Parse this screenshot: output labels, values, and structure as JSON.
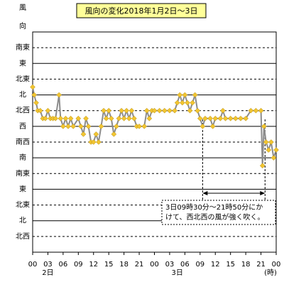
{
  "chart_data": {
    "type": "line",
    "title": "風向の変化2018年1月2日～3日",
    "y_label_chars": [
      "風",
      "向"
    ],
    "x_unit": "(時)",
    "series": [
      {
        "color": "#8c8c8c",
        "marker_color": "#f2c531",
        "x": [
          0,
          0.3,
          0.7,
          1,
          1.5,
          2,
          2.5,
          3,
          3.5,
          4,
          4.5,
          5.2,
          5.5,
          6,
          6.5,
          7,
          7.5,
          8,
          9,
          9.5,
          10,
          10.5,
          11,
          11.5,
          12,
          12.5,
          13,
          13.5,
          14,
          14.5,
          15,
          15.5,
          16,
          16.5,
          17,
          17.5,
          18,
          18.5,
          19,
          19.5,
          20,
          20.5,
          21,
          22,
          22.5,
          23,
          23.5,
          24,
          25,
          26,
          27,
          28,
          28.5,
          29,
          29.5,
          30,
          30.5,
          31,
          31.5,
          32,
          32.5,
          33,
          33.5,
          34,
          35,
          35.5,
          36,
          37,
          37.5,
          38,
          39,
          40,
          41,
          42,
          43,
          44,
          45,
          45.3,
          45.6,
          46,
          46.5,
          47,
          47.5,
          48
        ],
        "values": [
          742.5,
          720,
          697.5,
          675,
          675,
          652.5,
          652.5,
          675,
          652.5,
          652.5,
          652.5,
          720,
          652.5,
          630,
          652.5,
          630,
          652.5,
          630,
          652.5,
          630,
          607.5,
          652.5,
          630,
          585,
          585,
          607.5,
          585,
          630,
          675,
          652.5,
          675,
          652.5,
          607.5,
          630,
          652.5,
          675,
          652.5,
          675,
          652.5,
          675,
          652.5,
          630,
          630,
          630,
          675,
          652.5,
          675,
          675,
          675,
          675,
          675,
          675,
          697.5,
          720,
          697.5,
          720,
          697.5,
          675,
          697.5,
          720,
          675,
          652.5,
          630,
          652.5,
          652.5,
          630,
          652.5,
          652.5,
          675,
          652.5,
          652.5,
          652.5,
          652.5,
          652.5,
          675,
          675,
          675,
          517.5,
          630,
          585,
          562.5,
          585,
          540,
          562.5
        ]
      }
    ],
    "xlim": [
      0,
      48
    ],
    "xticks": [
      {
        "value": 0,
        "label": "00"
      },
      {
        "value": 3,
        "label": "03"
      },
      {
        "value": 6,
        "label": "06"
      },
      {
        "value": 9,
        "label": "09"
      },
      {
        "value": 12,
        "label": "12"
      },
      {
        "value": 15,
        "label": "15"
      },
      {
        "value": 18,
        "label": "18"
      },
      {
        "value": 21,
        "label": "21"
      },
      {
        "value": 24,
        "label": "00"
      },
      {
        "value": 27,
        "label": "03"
      },
      {
        "value": 30,
        "label": "06"
      },
      {
        "value": 33,
        "label": "09"
      },
      {
        "value": 36,
        "label": "12"
      },
      {
        "value": 39,
        "label": "15"
      },
      {
        "value": 42,
        "label": "18"
      },
      {
        "value": 45,
        "label": "21"
      },
      {
        "value": 48,
        "label": "00"
      }
    ],
    "day_labels": [
      {
        "value": 3,
        "label": "2日"
      },
      {
        "value": 28.5,
        "label": "3日"
      }
    ],
    "ylim": [
      270,
      900
    ],
    "yticks": [
      {
        "value": 855,
        "label": "南東"
      },
      {
        "value": 810,
        "label": "東"
      },
      {
        "value": 765,
        "label": "北東"
      },
      {
        "value": 720,
        "label": "北"
      },
      {
        "value": 675,
        "label": "北西"
      },
      {
        "value": 630,
        "label": "西"
      },
      {
        "value": 585,
        "label": "南西"
      },
      {
        "value": 540,
        "label": "南"
      },
      {
        "value": 495,
        "label": "南東"
      },
      {
        "value": 450,
        "label": "東"
      },
      {
        "value": 405,
        "label": "北東"
      },
      {
        "value": 360,
        "label": "北"
      },
      {
        "value": 315,
        "label": "北西"
      }
    ],
    "grid": true,
    "annotation": {
      "lines": [
        "3日09時30分～21時50分にか",
        "けて、西北西の風が強く吹く。"
      ],
      "x_start": 33.5,
      "x_end": 45.8
    }
  }
}
